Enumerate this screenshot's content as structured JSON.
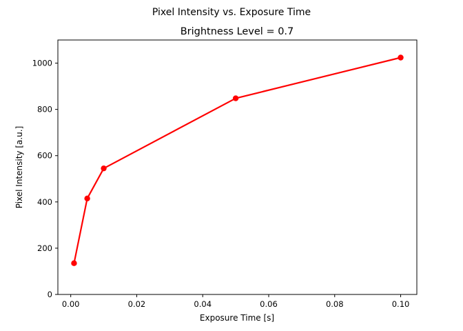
{
  "chart_data": {
    "type": "line",
    "suptitle": "Pixel Intensity vs. Exposure Time",
    "title": "Brightness Level = 0.7",
    "xlabel": "Exposure Time [s]",
    "ylabel": "Pixel Intensity [a.u.]",
    "xlim": [
      -0.0039,
      0.1049
    ],
    "ylim": [
      0,
      1100
    ],
    "xticks": [
      0.0,
      0.02,
      0.04,
      0.06,
      0.08,
      0.1
    ],
    "xtick_labels": [
      "0.00",
      "0.02",
      "0.04",
      "0.06",
      "0.08",
      "0.10"
    ],
    "yticks": [
      0,
      200,
      400,
      600,
      800,
      1000
    ],
    "ytick_labels": [
      "0",
      "200",
      "400",
      "600",
      "800",
      "1000"
    ],
    "grid": false,
    "series": [
      {
        "color": "#ff0000",
        "marker": "circle",
        "x": [
          0.001,
          0.005,
          0.01,
          0.05,
          0.1
        ],
        "y": [
          135,
          415,
          545,
          848,
          1024
        ]
      }
    ]
  }
}
